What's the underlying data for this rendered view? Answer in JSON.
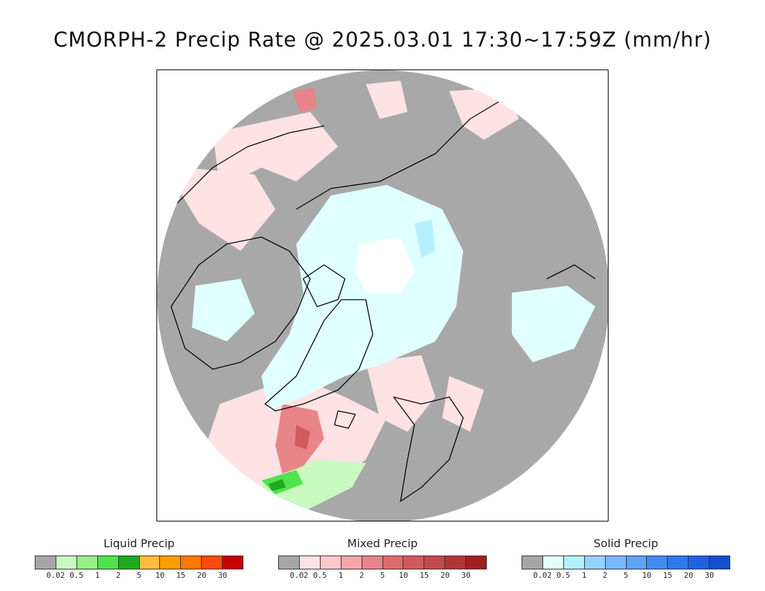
{
  "title": "CMORPH-2 Precip Rate @ 2025.03.01 17:30~17:59Z (mm/hr)",
  "map": {
    "projection": "north-polar-stereographic",
    "colors": {
      "background": "#a8a8a8",
      "outside": "#ffffff",
      "coastline": "#000000"
    }
  },
  "legends": [
    {
      "key": "liquid",
      "title": "Liquid Precip",
      "swatches": [
        "#a6a6a6",
        "#c8fac0",
        "#96ef88",
        "#4fe34d",
        "#1faa1e",
        "#ffbb3c",
        "#ff9d00",
        "#ff7700",
        "#ff4a0f",
        "#c80000"
      ],
      "ticks": [
        "0.02",
        "0.5",
        "1",
        "2",
        "5",
        "10",
        "15",
        "20",
        "30"
      ]
    },
    {
      "key": "mixed",
      "title": "Mixed Precip",
      "swatches": [
        "#a6a6a6",
        "#ffe2e4",
        "#ffc8cb",
        "#f3a6a8",
        "#e78588",
        "#dd6b6c",
        "#d05a5c",
        "#c2494b",
        "#b23436",
        "#9e2021"
      ],
      "ticks": [
        "0.02",
        "0.5",
        "1",
        "2",
        "5",
        "10",
        "15",
        "20",
        "30"
      ]
    },
    {
      "key": "solid",
      "title": "Solid Precip",
      "swatches": [
        "#a6a6a6",
        "#e0ffff",
        "#b4efff",
        "#96d2ff",
        "#78b9ff",
        "#5aa5f5",
        "#418cf0",
        "#2d78eb",
        "#1e64e1",
        "#1450cd"
      ],
      "ticks": [
        "0.02",
        "0.5",
        "1",
        "2",
        "5",
        "10",
        "15",
        "20",
        "30"
      ]
    }
  ]
}
